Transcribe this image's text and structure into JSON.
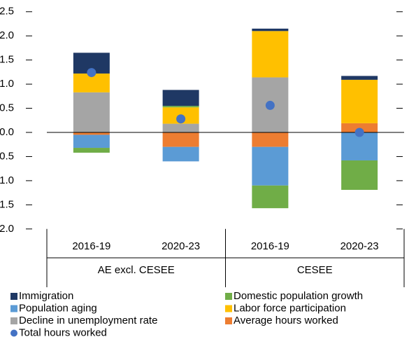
{
  "chart_data": {
    "type": "stacked_bar",
    "groups": [
      {
        "name": "AE excl. CESEE",
        "categories": [
          "2016-19",
          "2020-23"
        ]
      },
      {
        "name": "CESEE",
        "categories": [
          "2016-19",
          "2020-23"
        ]
      }
    ],
    "series": [
      {
        "name": "Immigration",
        "color": "#1f3864",
        "values": [
          0.43,
          0.33,
          0.05,
          0.08
        ]
      },
      {
        "name": "Domestic population growth",
        "color": "#70ad47",
        "values": [
          -0.1,
          0.03,
          -0.47,
          -0.61
        ]
      },
      {
        "name": "Population aging",
        "color": "#5b9bd5",
        "values": [
          -0.27,
          -0.3,
          -0.8,
          -0.58
        ]
      },
      {
        "name": "Labor force participation",
        "color": "#ffc000",
        "values": [
          0.39,
          0.34,
          0.96,
          0.9
        ]
      },
      {
        "name": "Decline in unemployment rate",
        "color": "#a5a5a5",
        "values": [
          0.83,
          0.18,
          1.14,
          0
        ]
      },
      {
        "name": "Average hours worked",
        "color": "#ed7d31",
        "values": [
          -0.05,
          -0.3,
          -0.3,
          0.19
        ]
      }
    ],
    "totals": {
      "name": "Total hours worked",
      "color": "#4472c4",
      "values": [
        1.24,
        0.28,
        0.56,
        0.0
      ]
    },
    "ylim": [
      -2,
      2.5
    ],
    "yticks": [
      {
        "value": -2,
        "label": "-2.0"
      },
      -1.5,
      {
        "value": -1,
        "label": "-1.0"
      },
      -0.5,
      {
        "value": 0,
        "label": "0.0"
      },
      0.5,
      {
        "value": 1,
        "label": "1.0"
      },
      1.5,
      {
        "value": 2,
        "label": "2.0"
      },
      2.5
    ]
  }
}
